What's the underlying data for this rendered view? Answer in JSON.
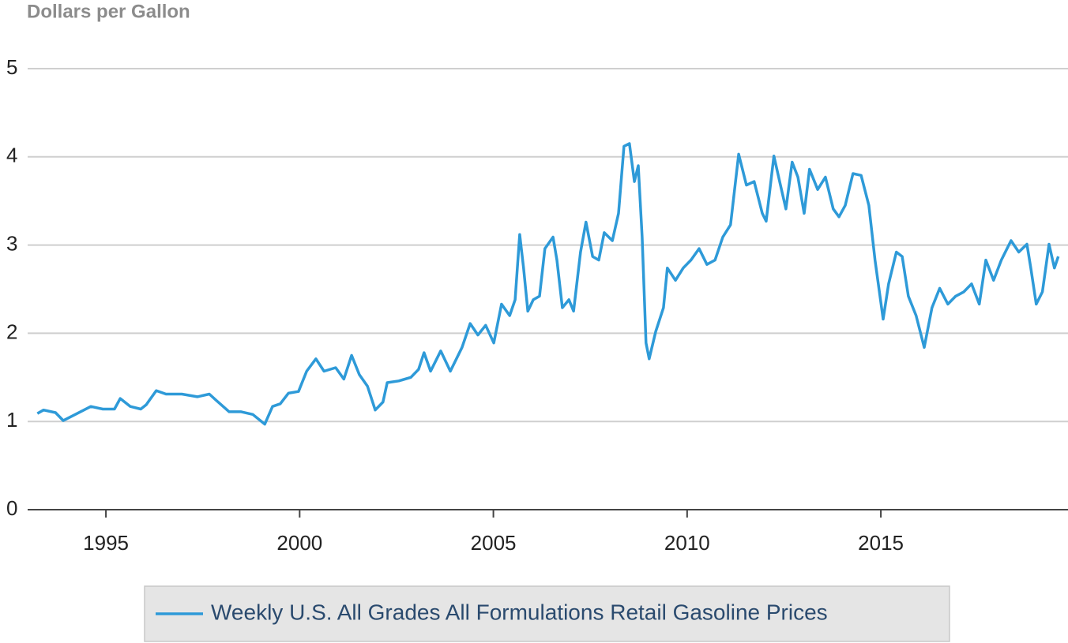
{
  "chart_data": {
    "type": "line",
    "y_label": "Dollars per Gallon",
    "x": [
      1993.23,
      1993.39,
      1993.7,
      1993.9,
      1994.21,
      1994.61,
      1994.92,
      1995.22,
      1995.37,
      1995.63,
      1995.9,
      1996.04,
      1996.3,
      1996.55,
      1996.96,
      1997.36,
      1997.67,
      1997.87,
      1998.18,
      1998.49,
      1998.79,
      1999.1,
      1999.3,
      1999.5,
      1999.71,
      1999.97,
      2000.18,
      2000.42,
      2000.63,
      2000.93,
      2001.14,
      2001.34,
      2001.54,
      2001.75,
      2001.95,
      2002.15,
      2002.26,
      2002.56,
      2002.87,
      2003.07,
      2003.21,
      2003.38,
      2003.64,
      2003.89,
      2004.19,
      2004.4,
      2004.6,
      2004.8,
      2005.01,
      2005.21,
      2005.42,
      2005.56,
      2005.68,
      2005.78,
      2005.89,
      2006.03,
      2006.19,
      2006.33,
      2006.54,
      2006.64,
      2006.78,
      2006.95,
      2007.07,
      2007.25,
      2007.39,
      2007.56,
      2007.72,
      2007.86,
      2008.07,
      2008.23,
      2008.37,
      2008.51,
      2008.64,
      2008.74,
      2008.84,
      2008.94,
      2009.02,
      2009.19,
      2009.39,
      2009.49,
      2009.7,
      2009.9,
      2010.1,
      2010.31,
      2010.51,
      2010.72,
      2010.92,
      2011.12,
      2011.33,
      2011.53,
      2011.73,
      2011.94,
      2012.04,
      2012.24,
      2012.41,
      2012.55,
      2012.71,
      2012.86,
      2013.02,
      2013.16,
      2013.37,
      2013.57,
      2013.77,
      2013.92,
      2014.08,
      2014.28,
      2014.49,
      2014.69,
      2014.85,
      2015.06,
      2015.2,
      2015.4,
      2015.55,
      2015.71,
      2015.91,
      2016.12,
      2016.32,
      2016.52,
      2016.73,
      2016.93,
      2017.14,
      2017.34,
      2017.54,
      2017.71,
      2017.91,
      2018.11,
      2018.36,
      2018.56,
      2018.77,
      2018.87,
      2019.01,
      2019.17,
      2019.34,
      2019.48,
      2019.58
    ],
    "series": [
      {
        "name": "Weekly U.S. All Grades All Formulations Retail Gasoline Prices",
        "color": "#2e9ad8",
        "values": [
          1.09,
          1.13,
          1.1,
          1.01,
          1.08,
          1.17,
          1.14,
          1.14,
          1.26,
          1.17,
          1.14,
          1.19,
          1.35,
          1.31,
          1.31,
          1.28,
          1.31,
          1.23,
          1.11,
          1.11,
          1.08,
          0.97,
          1.17,
          1.2,
          1.32,
          1.34,
          1.57,
          1.71,
          1.57,
          1.61,
          1.48,
          1.75,
          1.53,
          1.4,
          1.13,
          1.22,
          1.44,
          1.46,
          1.5,
          1.59,
          1.78,
          1.57,
          1.8,
          1.57,
          1.84,
          2.11,
          1.98,
          2.09,
          1.89,
          2.33,
          2.2,
          2.38,
          3.12,
          2.74,
          2.25,
          2.38,
          2.42,
          2.96,
          3.09,
          2.83,
          2.29,
          2.38,
          2.25,
          2.92,
          3.26,
          2.87,
          2.83,
          3.14,
          3.05,
          3.36,
          4.12,
          4.15,
          3.72,
          3.9,
          3.09,
          1.89,
          1.71,
          2.02,
          2.29,
          2.74,
          2.6,
          2.74,
          2.83,
          2.96,
          2.78,
          2.83,
          3.09,
          3.23,
          4.03,
          3.68,
          3.72,
          3.36,
          3.27,
          4.01,
          3.68,
          3.41,
          3.94,
          3.77,
          3.36,
          3.86,
          3.63,
          3.77,
          3.41,
          3.32,
          3.45,
          3.81,
          3.79,
          3.45,
          2.83,
          2.16,
          2.56,
          2.92,
          2.87,
          2.42,
          2.2,
          1.84,
          2.29,
          2.51,
          2.33,
          2.42,
          2.47,
          2.56,
          2.33,
          2.83,
          2.6,
          2.83,
          3.05,
          2.92,
          3.01,
          2.74,
          2.33,
          2.47,
          3.01,
          2.74,
          2.87
        ]
      }
    ],
    "xlim": [
      1992.98,
      2019.83
    ],
    "xticks": [
      1995,
      2000,
      2005,
      2010,
      2015
    ],
    "ylim": [
      0,
      5
    ],
    "yticks": [
      0,
      1,
      2,
      3,
      4,
      5
    ],
    "grid": true,
    "legend": "bottom"
  }
}
